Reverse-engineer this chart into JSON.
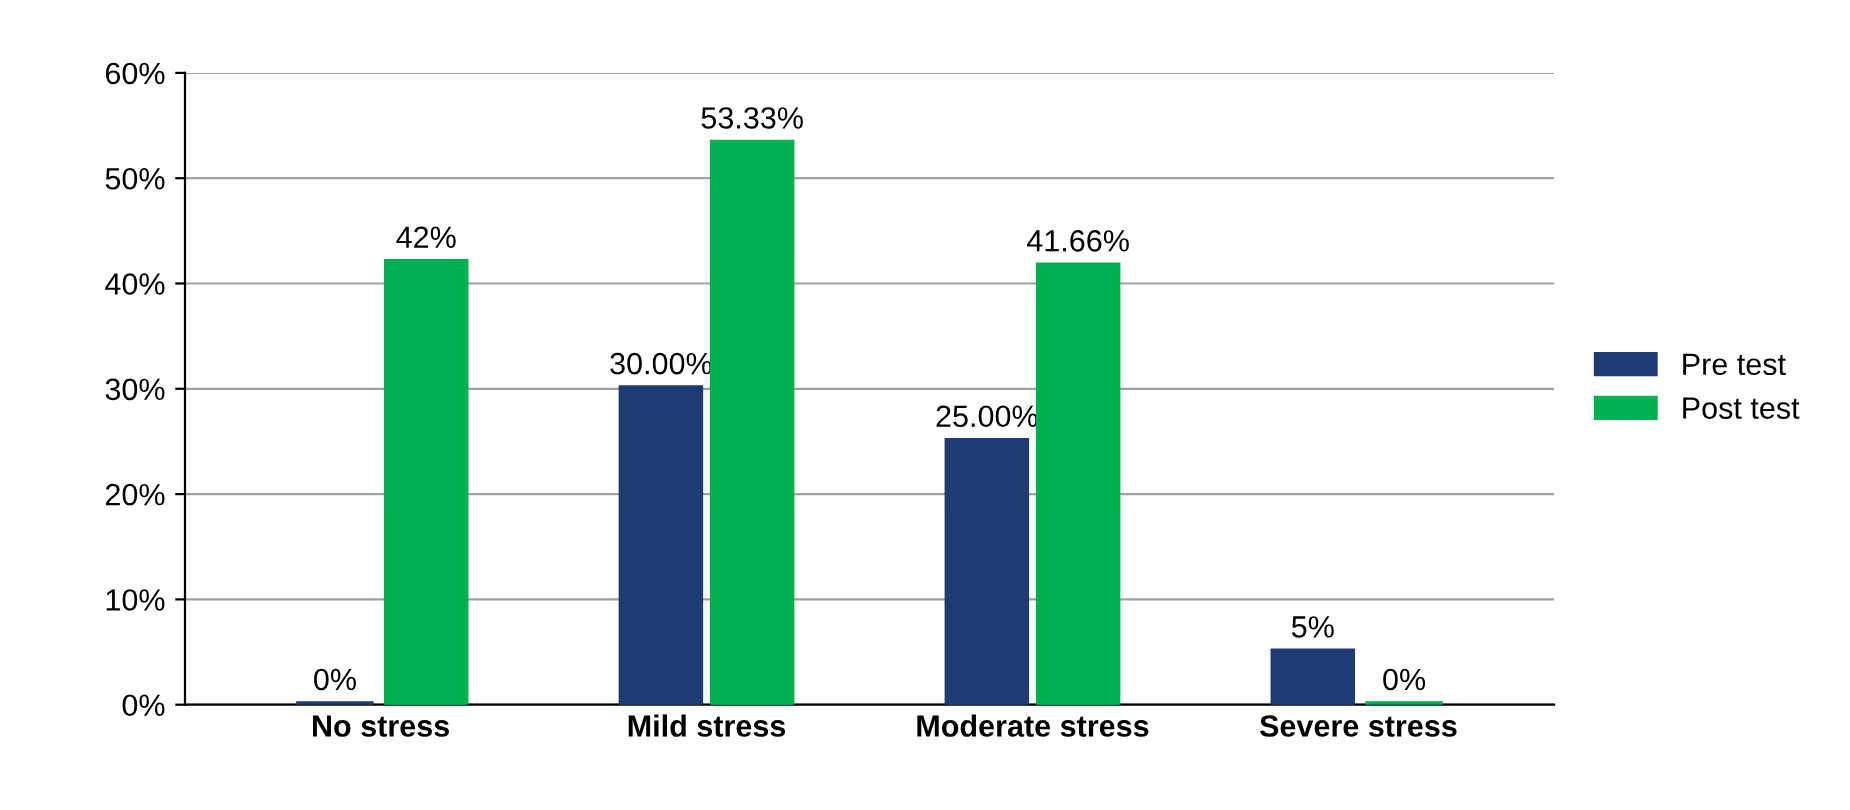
{
  "chart_data": {
    "type": "bar",
    "categories": [
      "No stress",
      "Mild stress",
      "Moderate stress",
      "Severe stress"
    ],
    "series": [
      {
        "name": "Pre test",
        "color": "#1f3b73",
        "values": [
          0,
          30,
          25,
          5
        ],
        "value_labels": [
          "0%",
          "30.00%",
          "25.00%",
          "5%"
        ]
      },
      {
        "name": "Post test",
        "color": "#00b050",
        "values": [
          42,
          53.33,
          41.66,
          0
        ],
        "value_labels": [
          "42%",
          "53.33%",
          "41.66%",
          "0%"
        ]
      }
    ],
    "ylim": [
      0,
      60
    ],
    "yticks": [
      {
        "value": 0,
        "label": "0%"
      },
      {
        "value": 10,
        "label": "10%"
      },
      {
        "value": 20,
        "label": "20%"
      },
      {
        "value": 30,
        "label": "30%"
      },
      {
        "value": 40,
        "label": "40%"
      },
      {
        "value": 50,
        "label": "50%"
      },
      {
        "value": 60,
        "label": "60%"
      }
    ],
    "grid": "y",
    "legend": "right"
  }
}
